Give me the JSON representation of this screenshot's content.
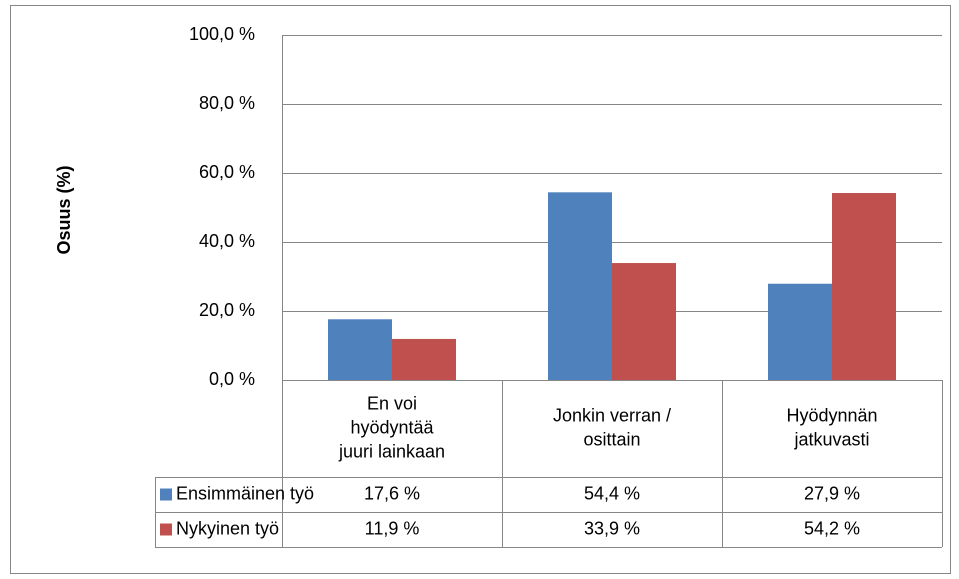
{
  "chart_data": {
    "type": "bar",
    "y_axis_label": "Osuus (%)",
    "categories": [
      [
        "En voi",
        "hyödyntää",
        "juuri lainkaan"
      ],
      [
        "Jonkin verran /",
        "osittain"
      ],
      [
        "Hyödynnän",
        "jatkuvasti"
      ]
    ],
    "series": [
      {
        "name": "Ensimmäinen työ",
        "color": "#4f81bd",
        "values": [
          17.6,
          54.4,
          27.9
        ],
        "value_labels": [
          "17,6 %",
          "54,4 %",
          "27,9 %"
        ]
      },
      {
        "name": "Nykyinen työ",
        "color": "#c0504d",
        "values": [
          11.9,
          33.9,
          54.2
        ],
        "value_labels": [
          "11,9 %",
          "33,9 %",
          "54,2 %"
        ]
      }
    ],
    "ylim": [
      0,
      100
    ],
    "yticks": [
      {
        "value": 0,
        "label": "0,0 %"
      },
      {
        "value": 20,
        "label": "20,0 %"
      },
      {
        "value": 40,
        "label": "40,0 %"
      },
      {
        "value": 60,
        "label": "60,0 %"
      },
      {
        "value": 80,
        "label": "80,0 %"
      },
      {
        "value": 100,
        "label": "100,0 %"
      }
    ],
    "grid": true
  }
}
